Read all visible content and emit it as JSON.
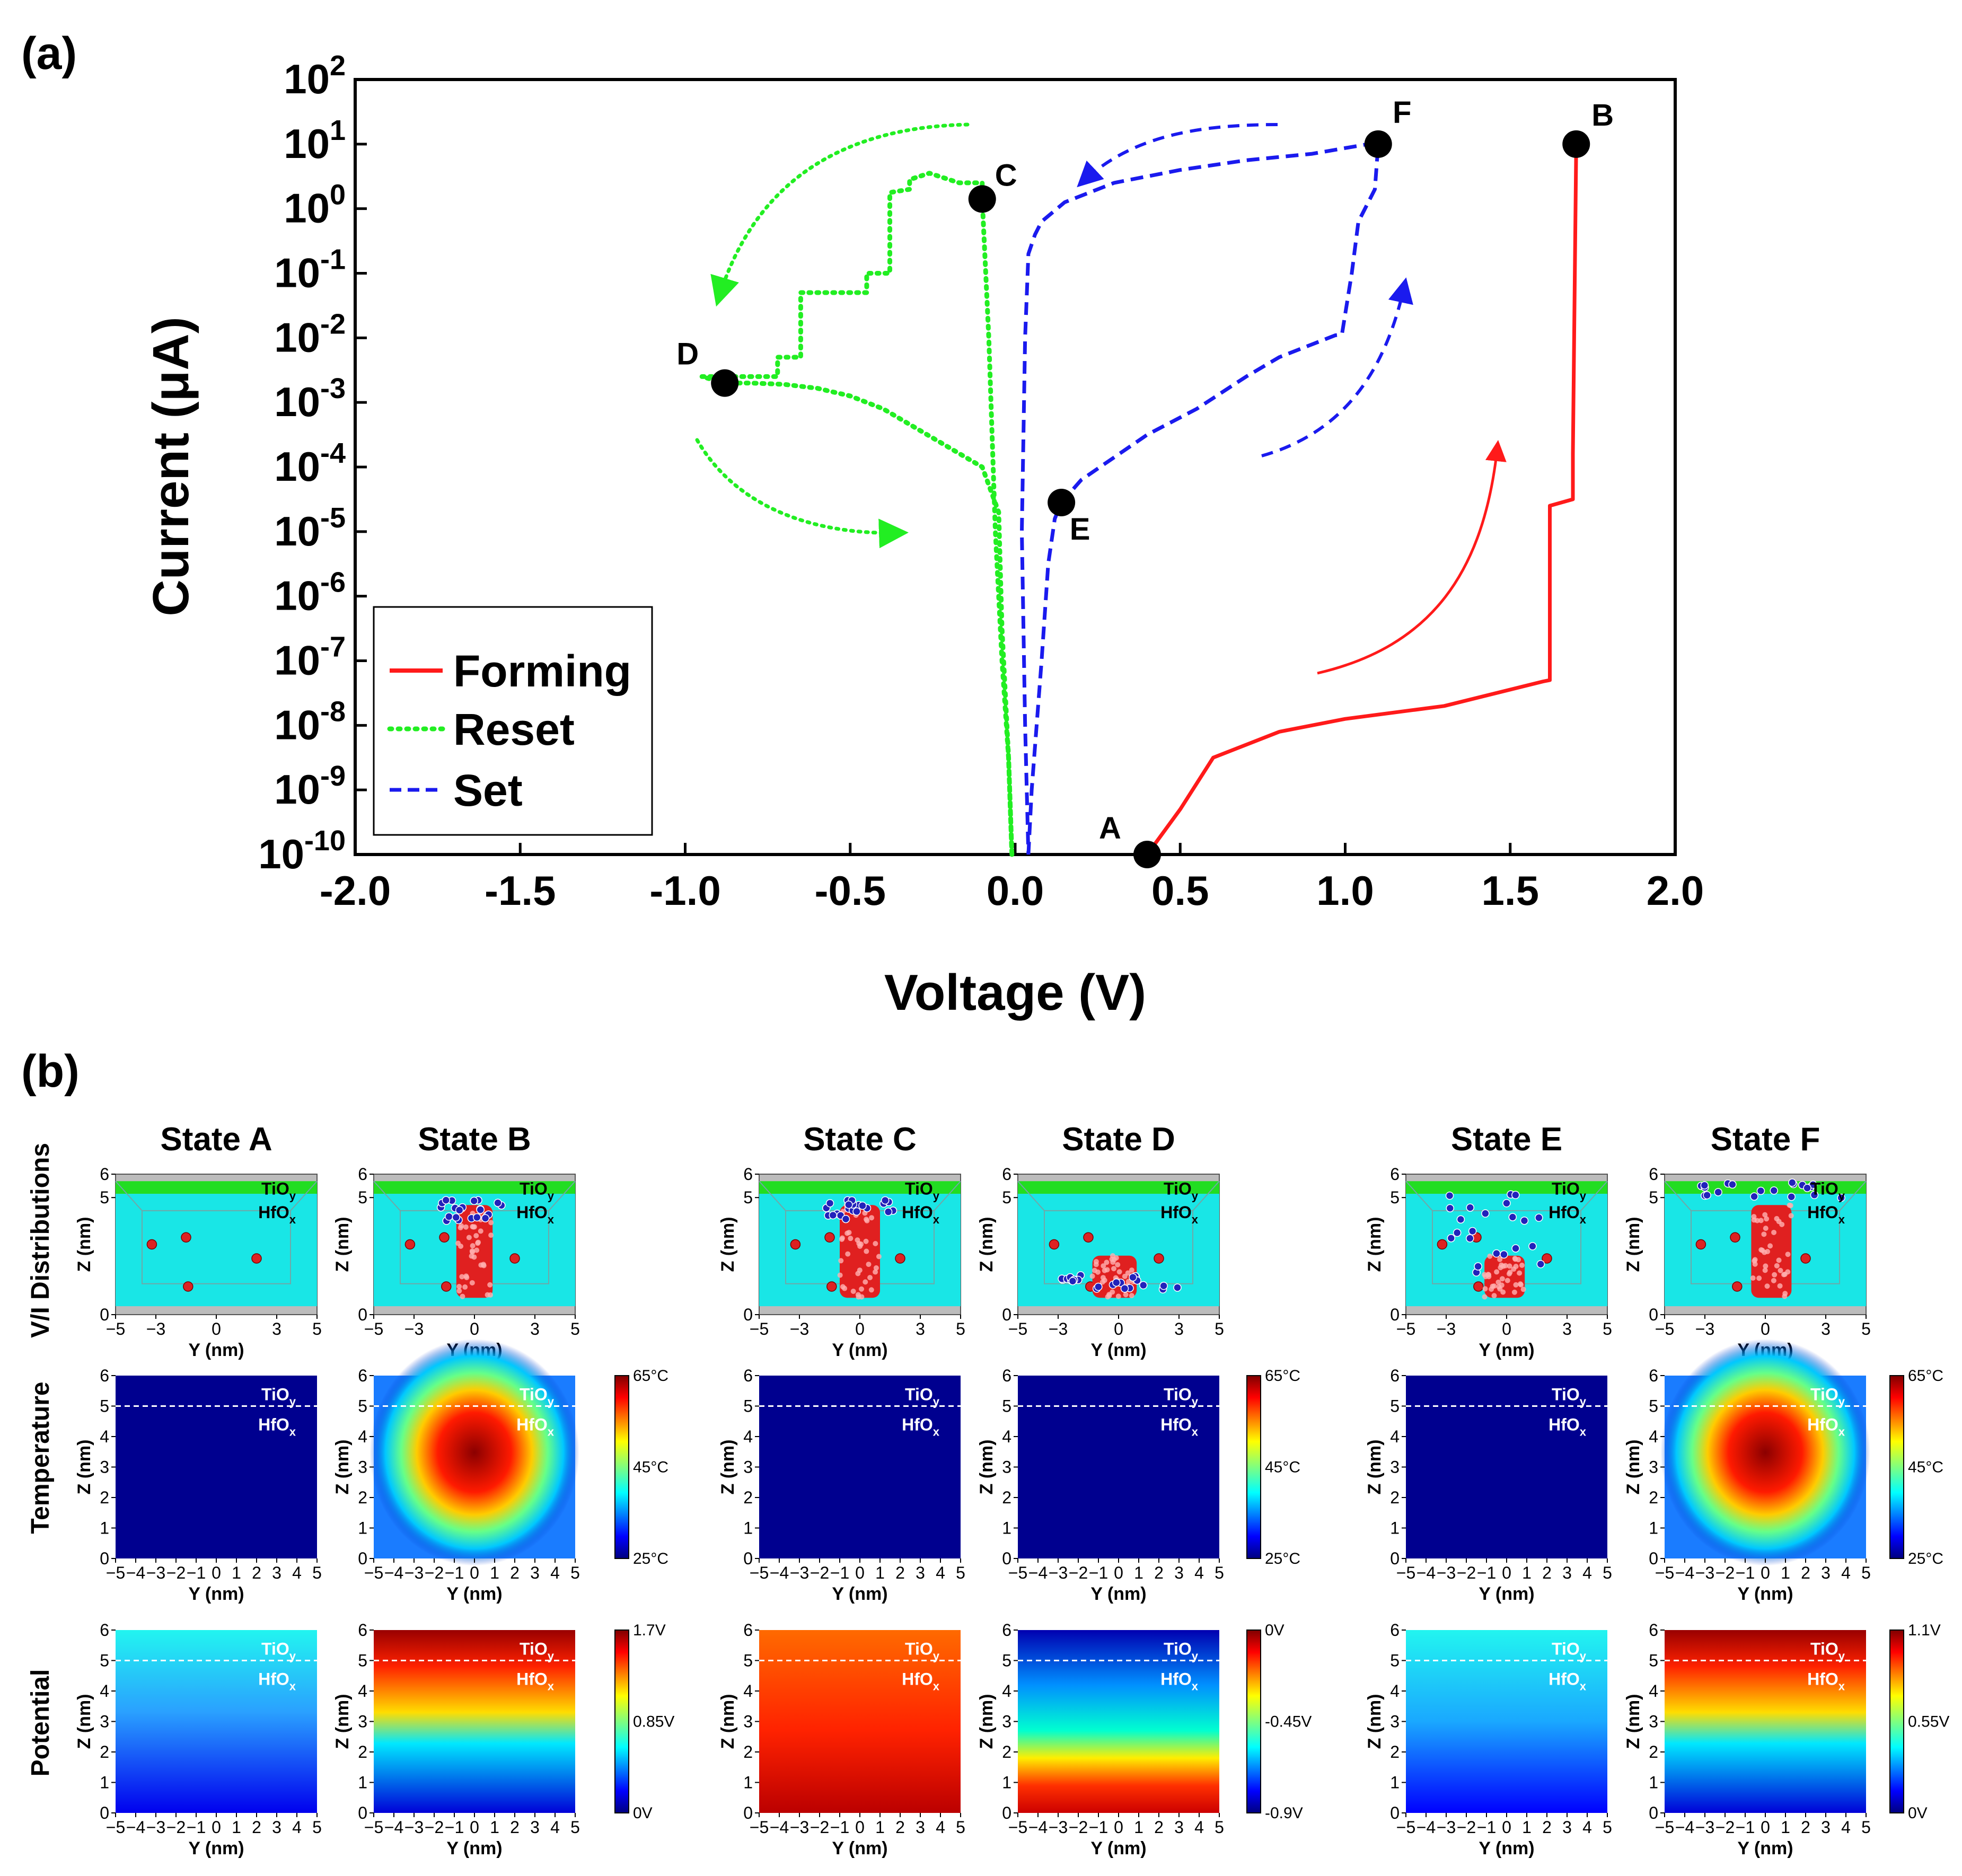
{
  "panel_a_label": "(a)",
  "panel_b_label": "(b)",
  "colors": {
    "forming": "#ff1a1a",
    "reset": "#22ee22",
    "set": "#1a1aee"
  },
  "chart_data": [
    {
      "type": "line",
      "xlabel": "Voltage (V)",
      "ylabel": "Current (μA)",
      "xlim": [
        -2.0,
        2.0
      ],
      "ylim_log10": [
        -10,
        2
      ],
      "yscale": "log",
      "x_tick_labels": [
        "-2.0",
        "-1.5",
        "-1.0",
        "-0.5",
        "0.0",
        "0.5",
        "1.0",
        "1.5",
        "2.0"
      ],
      "y_tick_exponents": [
        "2",
        "1",
        "0",
        "-1",
        "-2",
        "-3",
        "-4",
        "-5",
        "-6",
        "-7",
        "-8",
        "-9",
        "-10"
      ],
      "legend_placement": "bottom-left",
      "series": [
        {
          "name": "Forming",
          "style": "solid",
          "x": [
            0.4,
            0.5,
            0.6,
            0.8,
            1.0,
            1.3,
            1.6,
            1.62,
            1.62,
            1.69,
            1.69,
            1.7
          ],
          "log10_y": [
            -10.0,
            -9.3,
            -8.5,
            -8.1,
            -7.9,
            -7.7,
            -7.32,
            -7.3,
            -4.6,
            -4.5,
            -3.8,
            1.0
          ]
        },
        {
          "name": "Reset",
          "style": "dotted",
          "x": [
            -0.01,
            -0.02,
            -0.04,
            -0.05,
            -0.1,
            -0.15,
            -0.2,
            -0.3,
            -0.4,
            -0.5,
            -0.6,
            -0.7,
            -0.8,
            -0.88,
            -0.95,
            -0.88,
            -0.72,
            -0.72,
            -0.65,
            -0.65,
            -0.45,
            -0.45,
            -0.38,
            -0.38,
            -0.32,
            -0.32,
            -0.26,
            -0.2,
            -0.17,
            -0.1,
            -0.1,
            -0.08,
            -0.06,
            -0.04,
            -0.02,
            -0.01
          ],
          "log10_y": [
            -10.0,
            -8.5,
            -6.5,
            -4.7,
            -4.0,
            -3.85,
            -3.7,
            -3.4,
            -3.1,
            -2.9,
            -2.78,
            -2.72,
            -2.7,
            -2.7,
            -2.6,
            -2.6,
            -2.6,
            -2.3,
            -2.3,
            -1.3,
            -1.3,
            -1.0,
            -1.0,
            0.25,
            0.3,
            0.45,
            0.55,
            0.45,
            0.4,
            0.4,
            0.15,
            -2.0,
            -5.0,
            -7.0,
            -8.5,
            -10.0
          ]
        },
        {
          "name": "Set",
          "style": "dashed",
          "x": [
            0.04,
            0.05,
            0.08,
            0.1,
            0.12,
            0.14,
            0.2,
            0.3,
            0.4,
            0.55,
            0.7,
            0.8,
            0.9,
            0.97,
            0.99,
            1.02,
            1.04,
            1.07,
            1.09,
            1.1,
            1.07,
            0.9,
            0.7,
            0.5,
            0.3,
            0.15,
            0.08,
            0.06,
            0.04,
            0.03,
            0.02,
            0.03,
            0.04
          ],
          "log10_y": [
            -10.0,
            -9.0,
            -7.0,
            -5.5,
            -4.8,
            -4.55,
            -4.2,
            -3.85,
            -3.5,
            -3.1,
            -2.6,
            -2.3,
            -2.1,
            -1.96,
            -1.95,
            -1.0,
            -0.2,
            0.1,
            0.3,
            1.0,
            1.0,
            0.85,
            0.75,
            0.6,
            0.4,
            0.1,
            -0.2,
            -0.4,
            -0.7,
            -2.0,
            -5.0,
            -8.0,
            -10.0
          ]
        }
      ],
      "annotations": [
        {
          "label": "A",
          "x": 0.4,
          "log10_y": -10.0
        },
        {
          "label": "B",
          "x": 1.7,
          "log10_y": 1.0
        },
        {
          "label": "C",
          "x": -0.1,
          "log10_y": 0.15
        },
        {
          "label": "D",
          "x": -0.88,
          "log10_y": -2.7
        },
        {
          "label": "E",
          "x": 0.14,
          "log10_y": -4.55
        },
        {
          "label": "F",
          "x": 1.1,
          "log10_y": 1.0
        }
      ]
    },
    {
      "type": "heatmap",
      "states": [
        "State A",
        "State B",
        "State C",
        "State D",
        "State E",
        "State F"
      ],
      "row_labels": [
        "V/I Distributions",
        "Temperature",
        "Potential"
      ],
      "xlabel": "Y (nm)",
      "ylabel": "Z (nm)",
      "xlim": [
        -5,
        5
      ],
      "zlim": [
        0,
        6
      ],
      "layers": {
        "top": "TiO",
        "top_sub": "y",
        "bottom": "HfO",
        "bottom_sub": "x"
      },
      "temperature_colorbar": {
        "max": "65°C",
        "mid": "45°C",
        "min": "25°C"
      },
      "potential_colorbars": [
        {
          "max": "1.7V",
          "mid": "0.85V",
          "min": "0V"
        },
        {
          "max": "0V",
          "mid": "-0.45V",
          "min": "-0.9V"
        },
        {
          "max": "1.1V",
          "mid": "0.55V",
          "min": "0V"
        }
      ]
    }
  ]
}
